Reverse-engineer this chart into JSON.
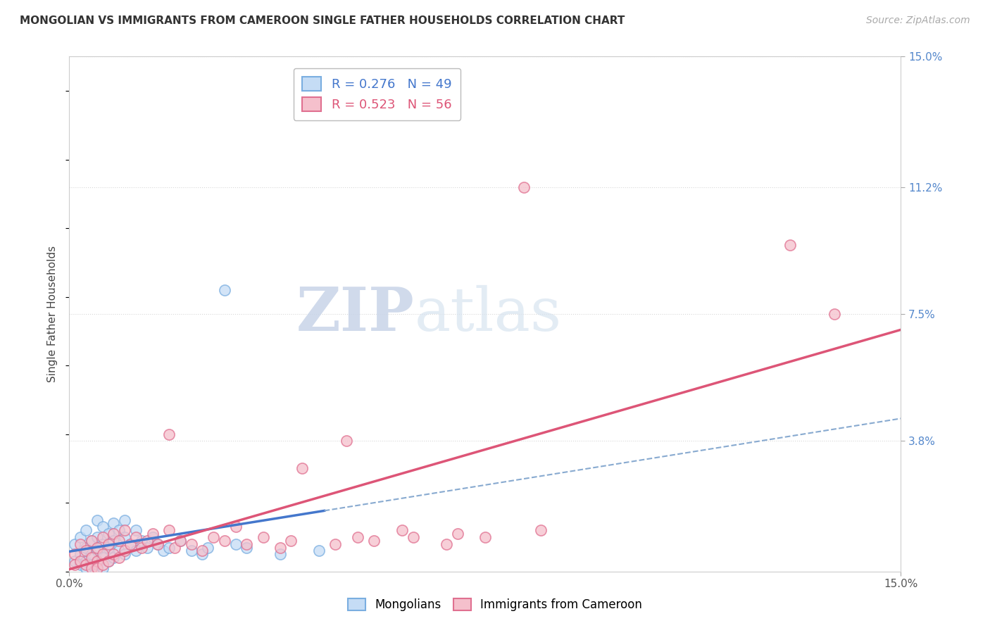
{
  "title": "MONGOLIAN VS IMMIGRANTS FROM CAMEROON SINGLE FATHER HOUSEHOLDS CORRELATION CHART",
  "source": "Source: ZipAtlas.com",
  "ylabel": "Single Father Households",
  "xlim": [
    0.0,
    0.15
  ],
  "ylim": [
    0.0,
    0.15
  ],
  "ytick_labels": [
    "3.8%",
    "7.5%",
    "11.2%",
    "15.0%"
  ],
  "ytick_values": [
    0.038,
    0.075,
    0.112,
    0.15
  ],
  "legend_mongolian": "R = 0.276   N = 49",
  "legend_cameroon": "R = 0.523   N = 56",
  "color_mongolian_fill": "#c5dcf5",
  "color_mongolian_edge": "#7aaee0",
  "color_cameroon_fill": "#f5c0cc",
  "color_cameroon_edge": "#e07090",
  "color_mongolian_line": "#4477cc",
  "color_cameroon_line": "#dd5577",
  "color_mongolian_dashed": "#88aad0",
  "background_color": "#ffffff",
  "grid_color": "#d8d8d8",
  "mongolian_x": [
    0.001,
    0.001,
    0.002,
    0.002,
    0.002,
    0.003,
    0.003,
    0.003,
    0.003,
    0.004,
    0.004,
    0.004,
    0.005,
    0.005,
    0.005,
    0.005,
    0.006,
    0.006,
    0.006,
    0.006,
    0.007,
    0.007,
    0.007,
    0.008,
    0.008,
    0.008,
    0.009,
    0.009,
    0.01,
    0.01,
    0.01,
    0.011,
    0.012,
    0.012,
    0.013,
    0.014,
    0.015,
    0.016,
    0.017,
    0.018,
    0.02,
    0.022,
    0.024,
    0.025,
    0.028,
    0.03,
    0.032,
    0.038,
    0.045
  ],
  "mongolian_y": [
    0.008,
    0.003,
    0.01,
    0.005,
    0.002,
    0.012,
    0.007,
    0.003,
    0.001,
    0.009,
    0.005,
    0.002,
    0.015,
    0.01,
    0.006,
    0.002,
    0.013,
    0.008,
    0.004,
    0.001,
    0.011,
    0.007,
    0.003,
    0.014,
    0.009,
    0.004,
    0.012,
    0.006,
    0.015,
    0.01,
    0.005,
    0.008,
    0.012,
    0.006,
    0.009,
    0.007,
    0.01,
    0.008,
    0.006,
    0.007,
    0.009,
    0.006,
    0.005,
    0.007,
    0.082,
    0.008,
    0.007,
    0.005,
    0.006
  ],
  "cameroon_x": [
    0.001,
    0.001,
    0.002,
    0.002,
    0.003,
    0.003,
    0.004,
    0.004,
    0.004,
    0.005,
    0.005,
    0.005,
    0.006,
    0.006,
    0.006,
    0.007,
    0.007,
    0.008,
    0.008,
    0.009,
    0.009,
    0.01,
    0.01,
    0.011,
    0.012,
    0.013,
    0.014,
    0.015,
    0.016,
    0.018,
    0.018,
    0.019,
    0.02,
    0.022,
    0.024,
    0.026,
    0.028,
    0.03,
    0.032,
    0.035,
    0.038,
    0.04,
    0.042,
    0.048,
    0.05,
    0.052,
    0.055,
    0.06,
    0.062,
    0.068,
    0.07,
    0.075,
    0.082,
    0.085,
    0.13,
    0.138
  ],
  "cameroon_y": [
    0.005,
    0.002,
    0.008,
    0.003,
    0.006,
    0.002,
    0.009,
    0.004,
    0.001,
    0.007,
    0.003,
    0.001,
    0.01,
    0.005,
    0.002,
    0.008,
    0.003,
    0.011,
    0.005,
    0.009,
    0.004,
    0.012,
    0.006,
    0.008,
    0.01,
    0.007,
    0.009,
    0.011,
    0.008,
    0.04,
    0.012,
    0.007,
    0.009,
    0.008,
    0.006,
    0.01,
    0.009,
    0.013,
    0.008,
    0.01,
    0.007,
    0.009,
    0.03,
    0.008,
    0.038,
    0.01,
    0.009,
    0.012,
    0.01,
    0.008,
    0.011,
    0.01,
    0.112,
    0.012,
    0.095,
    0.075
  ]
}
